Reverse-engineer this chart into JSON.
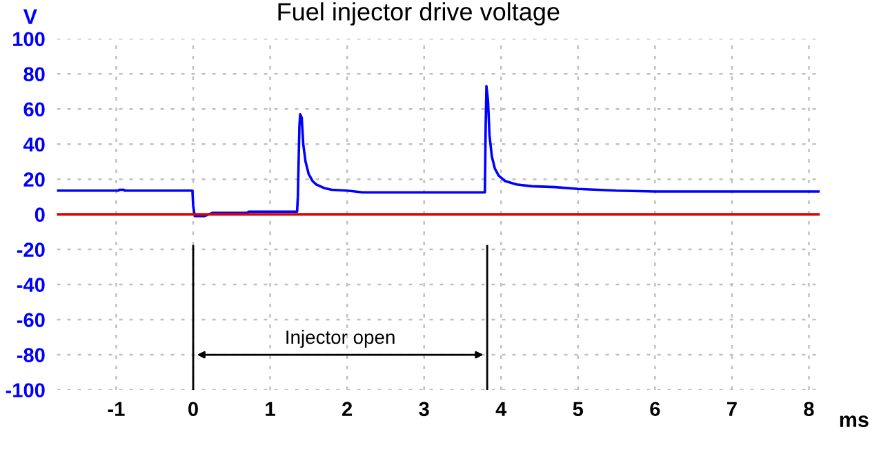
{
  "chart_data": {
    "type": "line",
    "title": "Fuel injector drive voltage",
    "xlabel": "ms",
    "ylabel": "V",
    "series": [
      {
        "color": "#0000ff",
        "x": [
          -1.77,
          -0.97,
          -0.96,
          -0.9,
          -0.89,
          -0.01,
          0.0,
          0.02,
          0.15,
          0.25,
          0.7,
          0.72,
          1.35,
          1.36,
          1.38,
          1.39,
          1.41,
          1.43,
          1.46,
          1.5,
          1.55,
          1.6,
          1.7,
          1.8,
          2.0,
          2.2,
          3.79,
          3.8,
          3.81,
          3.83,
          3.85,
          3.88,
          3.92,
          3.97,
          4.05,
          4.2,
          4.4,
          4.7,
          5.0,
          5.5,
          6.0,
          8.14
        ],
        "values": [
          13.5,
          13.5,
          14,
          14,
          13.5,
          13.5,
          5,
          -1,
          -1,
          0.8,
          0.8,
          1.5,
          1.5,
          10,
          50,
          57,
          55,
          40,
          30,
          23,
          19,
          17,
          15,
          14,
          13.5,
          12.5,
          12.5,
          50,
          73,
          65,
          45,
          33,
          26,
          22,
          19,
          17,
          16,
          15.5,
          14.5,
          13.5,
          13,
          13
        ]
      },
      {
        "color": "#e00000",
        "x": [
          -1.77,
          8.14
        ],
        "values": [
          0,
          0
        ]
      }
    ],
    "xlim": [
      -1.77,
      8.14
    ],
    "ylim": [
      -100,
      100
    ],
    "xticks": [
      -1,
      0,
      1,
      2,
      3,
      4,
      5,
      6,
      7,
      8
    ],
    "yticks": [
      -100,
      -80,
      -60,
      -40,
      -20,
      0,
      20,
      40,
      60,
      80,
      100
    ],
    "grid": true,
    "line_style": "solid",
    "marker": "none",
    "ref_lines": [
      {
        "axis": "x",
        "value": 0,
        "color": "#000000"
      },
      {
        "axis": "x",
        "value": 3.82,
        "color": "#000000"
      }
    ],
    "annotations": [
      "Injector open"
    ]
  }
}
